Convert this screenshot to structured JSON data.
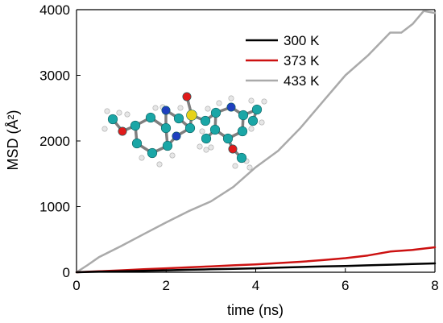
{
  "chart_data": {
    "type": "line",
    "xlabel": "time (ns)",
    "ylabel": "MSD (Å²)",
    "xlim": [
      0,
      8
    ],
    "ylim": [
      0,
      4000
    ],
    "xticks": [
      0,
      2,
      4,
      6,
      8
    ],
    "yticks": [
      0,
      1000,
      2000,
      3000,
      4000
    ],
    "xtick_labels": [
      "0",
      "2",
      "4",
      "6",
      "8"
    ],
    "ytick_labels": [
      "0",
      "1000",
      "2000",
      "3000",
      "4000"
    ],
    "grid": false,
    "legend_position": "top-right",
    "series": [
      {
        "name": "300 K",
        "color": "#000000",
        "x": [
          0,
          0.5,
          1,
          1.5,
          2,
          2.5,
          3,
          3.5,
          4,
          4.5,
          5,
          5.5,
          6,
          6.5,
          7,
          7.5,
          8
        ],
        "y": [
          0,
          8,
          15,
          22,
          30,
          38,
          45,
          52,
          60,
          70,
          80,
          88,
          95,
          105,
          115,
          125,
          135
        ]
      },
      {
        "name": "373 K",
        "color": "#cc1111",
        "x": [
          0,
          0.5,
          1,
          1.5,
          2,
          2.5,
          3,
          3.5,
          4,
          4.5,
          5,
          5.5,
          6,
          6.5,
          7,
          7.5,
          8
        ],
        "y": [
          0,
          15,
          30,
          45,
          60,
          75,
          90,
          105,
          120,
          140,
          160,
          185,
          215,
          255,
          315,
          340,
          380
        ]
      },
      {
        "name": "433 K",
        "color": "#aaaaaa",
        "x": [
          0,
          0.25,
          0.5,
          1,
          1.5,
          2,
          2.5,
          3,
          3.5,
          4,
          4.5,
          5,
          5.5,
          6,
          6.5,
          7,
          7.25,
          7.5,
          7.75,
          8
        ],
        "y": [
          0,
          110,
          230,
          400,
          580,
          760,
          930,
          1080,
          1300,
          1600,
          1850,
          2200,
          2600,
          3000,
          3300,
          3650,
          3650,
          3780,
          3980,
          3950
        ]
      }
    ]
  },
  "molecule_colors": {
    "carbon": "#1aa6a6",
    "hydrogen": "#e6e6e6",
    "nitrogen": "#1f3fbf",
    "oxygen": "#e01b1b",
    "sulfur": "#e6d21a",
    "bond": "#7f7f7f"
  }
}
